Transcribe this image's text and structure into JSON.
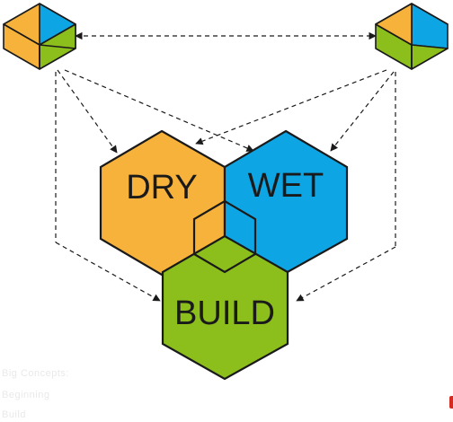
{
  "colors": {
    "orange": "#f7b23b",
    "blue": "#0ea5e4",
    "green": "#8cbf1b",
    "outline": "#1a1a1a",
    "red_mark": "#d42a20"
  },
  "hexagons": [
    {
      "id": "dry",
      "label": "DRY",
      "color": "#f7b23b"
    },
    {
      "id": "wet",
      "label": "WET",
      "color": "#0ea5e4"
    },
    {
      "id": "build",
      "label": "BUILD",
      "color": "#8cbf1b"
    }
  ],
  "cube_icons": [
    {
      "id": "left",
      "icon": "cube-icon"
    },
    {
      "id": "right",
      "icon": "cube-icon"
    }
  ],
  "faded_notes": [
    "Big Concepts:",
    "Beginning",
    "Build"
  ]
}
